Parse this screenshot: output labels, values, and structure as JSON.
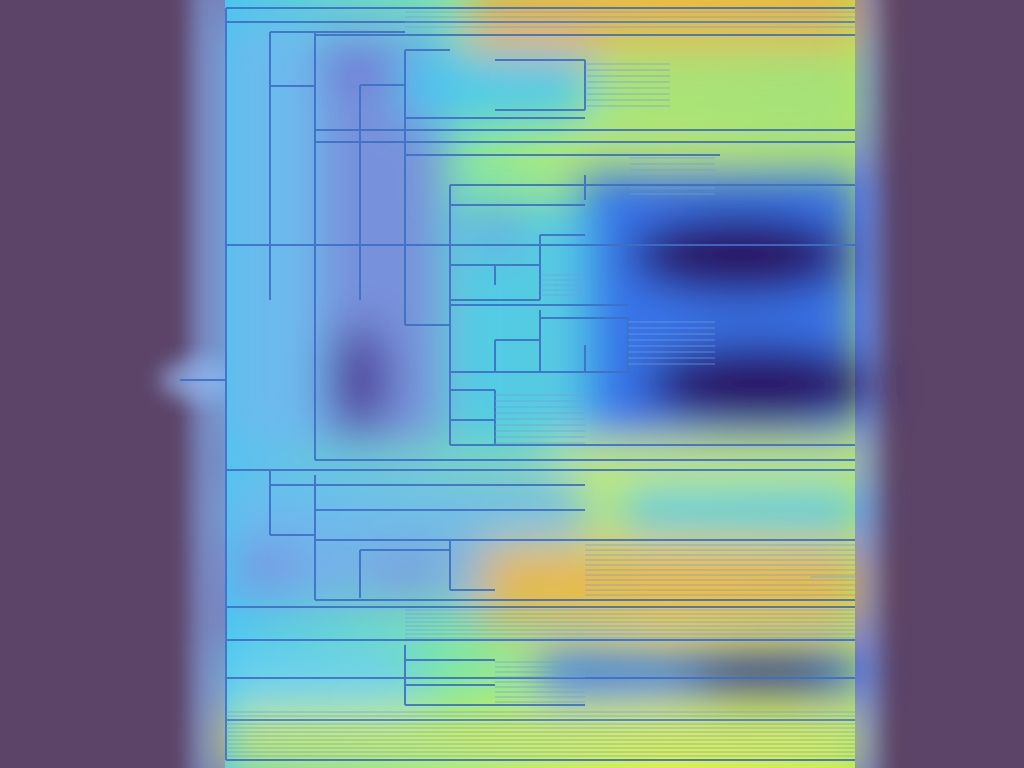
{
  "figure": {
    "type": "dendrogram-heatmap-overlay",
    "background_color": "#5c4468",
    "tree_line_color": "#3f6fc4",
    "colormap": [
      "#2a0a5e",
      "#3020a8",
      "#2f6ef0",
      "#49c6f2",
      "#7fe6a8",
      "#d9ee55",
      "#f0a840"
    ]
  }
}
